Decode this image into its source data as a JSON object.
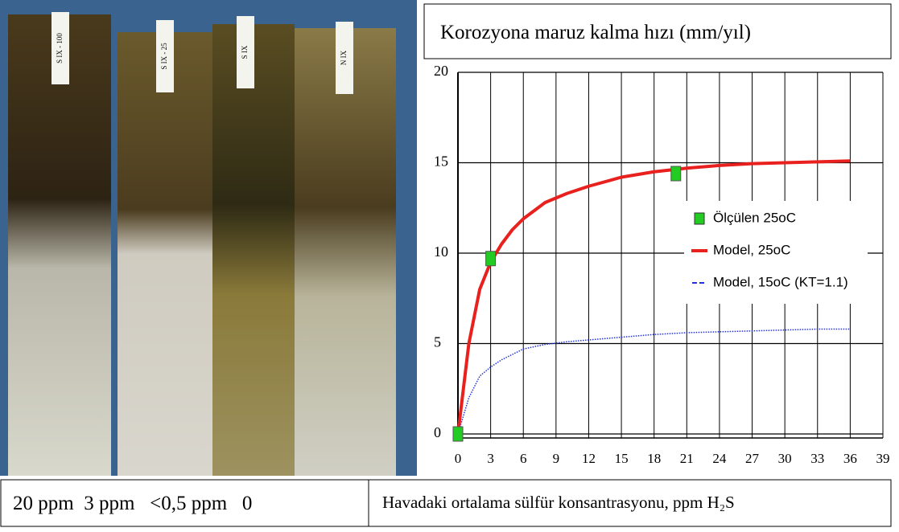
{
  "photo": {
    "labels": [
      "S IX - 100",
      "S IX - 25",
      "S IX",
      "N IX"
    ]
  },
  "chart_data": {
    "type": "line",
    "title": "Korozyona maruz kalma hızı (mm/yıl)",
    "x_label": "Havadaki ortalama sülfür konsantrasyonu, ppm H₂S",
    "sample_labels": "20 ppm  3 ppm   <0,5 ppm   0",
    "xlim": [
      0,
      39
    ],
    "xticks": [
      0,
      3,
      6,
      9,
      12,
      15,
      18,
      21,
      24,
      27,
      30,
      33,
      36,
      39
    ],
    "ylim": [
      0,
      20
    ],
    "yticks": [
      0,
      5,
      10,
      15,
      20
    ],
    "grid": true,
    "legend": "right",
    "series": [
      {
        "name": "Ölçülen   25oC",
        "type": "scatter",
        "color": "#22cc22",
        "x": [
          0,
          3,
          20
        ],
        "values": [
          0,
          9.7,
          14.4
        ]
      },
      {
        "name": "Model, 25oC",
        "type": "line",
        "color": "#e8201e",
        "x": [
          0,
          1,
          2,
          3,
          4,
          5,
          6,
          8,
          10,
          12,
          15,
          18,
          21,
          24,
          27,
          30,
          33,
          36
        ],
        "values": [
          0,
          5,
          8,
          9.5,
          10.5,
          11.3,
          11.9,
          12.8,
          13.3,
          13.7,
          14.2,
          14.5,
          14.7,
          14.85,
          14.95,
          15,
          15.05,
          15.1
        ]
      },
      {
        "name": "Model, 15oC (KT=1.1)",
        "type": "dashed",
        "color": "#2233dd",
        "x": [
          0,
          1,
          2,
          3,
          4,
          5,
          6,
          8,
          10,
          12,
          15,
          18,
          21,
          24,
          27,
          30,
          33,
          36
        ],
        "values": [
          0,
          2,
          3.2,
          3.7,
          4.1,
          4.4,
          4.7,
          4.95,
          5.1,
          5.2,
          5.35,
          5.5,
          5.6,
          5.65,
          5.7,
          5.75,
          5.8,
          5.8
        ]
      }
    ]
  }
}
